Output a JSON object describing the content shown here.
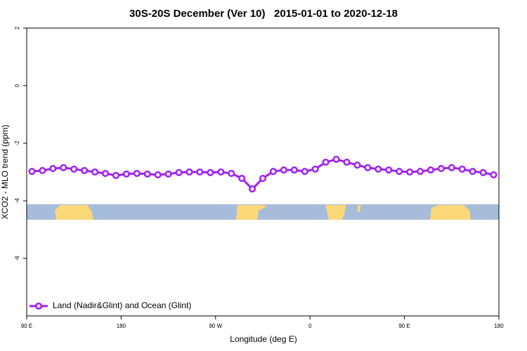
{
  "chart_data": {
    "type": "line",
    "title": "30S-20S December (Ver 10)   2015-01-01 to 2020-12-18",
    "x_label": "Longitude (deg E)",
    "y_label": "XCO2 - MLO trend (ppm)",
    "xlim": [
      90,
      540
    ],
    "xticks": [
      {
        "value": 90,
        "label": "90 E"
      },
      180,
      {
        "value": 270,
        "label": "90 W"
      },
      {
        "value": 360,
        "label": "0"
      },
      {
        "value": 450,
        "label": "90 E"
      },
      {
        "value": 540,
        "label": "180"
      }
    ],
    "ylim": [
      -8,
      2
    ],
    "yticks": [
      2,
      0,
      -2,
      -4,
      -6
    ],
    "legend": "bottom-left",
    "x": [
      95,
      105,
      115,
      125,
      135,
      145,
      155,
      165,
      175,
      185,
      195,
      205,
      215,
      225,
      235,
      245,
      255,
      265,
      275,
      285,
      295,
      305,
      315,
      325,
      335,
      345,
      355,
      365,
      375,
      385,
      395,
      405,
      415,
      425,
      435,
      445,
      455,
      465,
      475,
      485,
      495,
      505,
      515,
      525,
      535
    ],
    "series": [
      {
        "name": "Land (Nadir&Glint) and Ocean (Glint)",
        "color": "#a020f0",
        "values": [
          -2.98,
          -2.95,
          -2.88,
          -2.85,
          -2.9,
          -2.95,
          -3.0,
          -3.05,
          -3.12,
          -3.07,
          -3.05,
          -3.07,
          -3.1,
          -3.07,
          -3.02,
          -3.0,
          -3.0,
          -3.02,
          -3.0,
          -3.05,
          -3.22,
          -3.59,
          -3.22,
          -2.98,
          -2.93,
          -2.93,
          -2.98,
          -2.9,
          -2.66,
          -2.56,
          -2.66,
          -2.76,
          -2.85,
          -2.9,
          -2.93,
          -2.98,
          -3.0,
          -2.98,
          -2.93,
          -2.88,
          -2.85,
          -2.9,
          -2.98,
          -3.02,
          -3.1
        ]
      }
    ]
  }
}
